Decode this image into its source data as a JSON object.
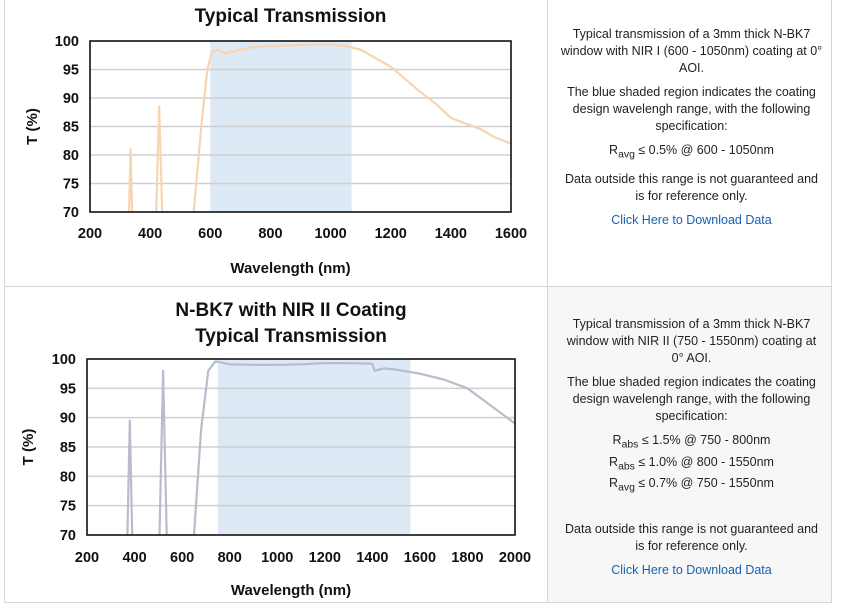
{
  "charts": [
    {
      "title_line1": "",
      "title_line2": "Typical Transmission",
      "description": "Typical transmission of a 3mm thick N-BK7 window with NIR I (600 - 1050nm) coating at 0° AOI.",
      "shaded_note": "The blue shaded region indicates the coating design wavelengh range, with the following specification:",
      "spec_lines": [
        {
          "sym": "R",
          "sub": "avg",
          "text": " ≤ 0.5% @ 600 - 1050nm"
        }
      ],
      "disclaimer": "Data outside this range is not guaranteed and is for reference only.",
      "download_link": "Click Here to Download Data"
    },
    {
      "title_line1": "N-BK7 with NIR II Coating",
      "title_line2": "Typical Transmission",
      "description": "Typical transmission of a 3mm thick N-BK7 window with NIR II (750 - 1550nm) coating at 0° AOI.",
      "shaded_note": "The blue shaded region indicates the coating design wavelengh range, with the following specification:",
      "spec_lines": [
        {
          "sym": "R",
          "sub": "abs",
          "text": " ≤ 1.5% @ 750 - 800nm"
        },
        {
          "sym": "R",
          "sub": "abs",
          "text": " ≤ 1.0% @ 800 - 1550nm"
        },
        {
          "sym": "R",
          "sub": "avg",
          "text": " ≤ 0.7% @ 750 - 1550nm"
        }
      ],
      "disclaimer": "Data outside this range is not guaranteed and is for reference only.",
      "download_link": "Click Here to Download Data"
    }
  ],
  "chart_data": [
    {
      "type": "line",
      "xlabel": "Wavelength (nm)",
      "ylabel": "T (%)",
      "xlim": [
        200,
        1600
      ],
      "ylim": [
        70,
        100
      ],
      "xticks": [
        200,
        400,
        600,
        800,
        1000,
        1200,
        1400,
        1600
      ],
      "yticks": [
        70,
        75,
        80,
        85,
        90,
        95,
        100
      ],
      "grid": true,
      "line_color": "#f8d4b0",
      "shade_color": "#dde9f5",
      "shaded_range": [
        600,
        1070
      ],
      "series": [
        {
          "segments": [
            [
              [
                330,
                70
              ],
              [
                335,
                81
              ],
              [
                340,
                70
              ]
            ],
            [
              [
                420,
                70
              ],
              [
                430,
                88.5
              ],
              [
                440,
                70
              ]
            ],
            [
              [
                545,
                70
              ],
              [
                570,
                85
              ],
              [
                590,
                95
              ],
              [
                605,
                98
              ],
              [
                620,
                98.5
              ],
              [
                650,
                97.8
              ],
              [
                700,
                98.5
              ],
              [
                750,
                99
              ],
              [
                800,
                99.1
              ],
              [
                900,
                99.3
              ],
              [
                1000,
                99.4
              ],
              [
                1050,
                99.1
              ],
              [
                1100,
                98.5
              ],
              [
                1200,
                95.5
              ],
              [
                1300,
                91
              ],
              [
                1350,
                89
              ],
              [
                1400,
                86.5
              ],
              [
                1450,
                85.5
              ],
              [
                1500,
                84.5
              ],
              [
                1550,
                83
              ],
              [
                1600,
                82
              ]
            ]
          ]
        }
      ]
    },
    {
      "type": "line",
      "xlabel": "Wavelength (nm)",
      "ylabel": "T (%)",
      "xlim": [
        200,
        2000
      ],
      "ylim": [
        70,
        100
      ],
      "xticks": [
        200,
        400,
        600,
        800,
        1000,
        1200,
        1400,
        1600,
        1800,
        2000
      ],
      "yticks": [
        70,
        75,
        80,
        85,
        90,
        95,
        100
      ],
      "grid": true,
      "line_color": "#b9bccb",
      "shade_color": "#dde9f5",
      "shaded_range": [
        750,
        1560
      ],
      "series": [
        {
          "segments": [
            [
              [
                370,
                70
              ],
              [
                380,
                89.5
              ],
              [
                390,
                70
              ]
            ],
            [
              [
                505,
                70
              ],
              [
                520,
                98
              ],
              [
                535,
                70
              ]
            ],
            [
              [
                650,
                70
              ],
              [
                680,
                88
              ],
              [
                710,
                98
              ],
              [
                740,
                99.6
              ],
              [
                800,
                99.1
              ],
              [
                900,
                99
              ],
              [
                1000,
                99
              ],
              [
                1100,
                99.1
              ],
              [
                1200,
                99.3
              ],
              [
                1300,
                99.3
              ],
              [
                1400,
                99.2
              ],
              [
                1410,
                98
              ],
              [
                1450,
                98.4
              ],
              [
                1500,
                98.2
              ],
              [
                1600,
                97.5
              ],
              [
                1700,
                96.5
              ],
              [
                1800,
                95
              ],
              [
                1900,
                92
              ],
              [
                2000,
                89
              ]
            ]
          ]
        }
      ]
    }
  ]
}
